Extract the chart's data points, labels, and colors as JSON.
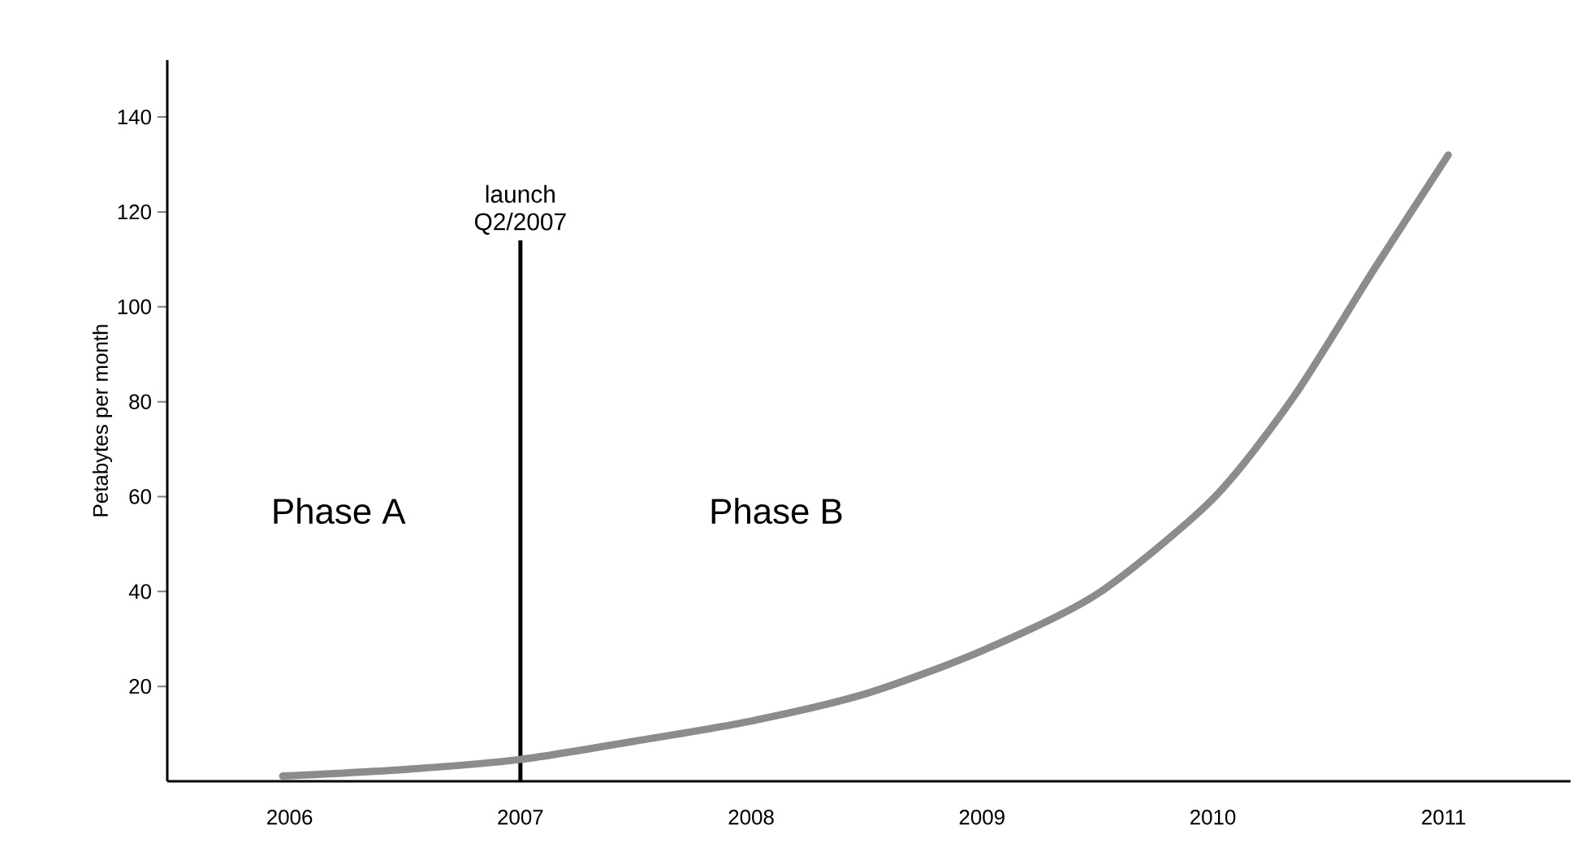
{
  "chart_data": {
    "type": "line",
    "ylabel": "Petabytes per month",
    "xlim": [
      2005.47,
      2011.55
    ],
    "ylim": [
      0,
      152
    ],
    "xticks": [
      2006,
      2007,
      2008,
      2009,
      2010,
      2011
    ],
    "yticks": [
      20,
      40,
      60,
      80,
      100,
      120,
      140
    ],
    "series": [
      {
        "color": "#8c8c8c",
        "x": [
          2005.97,
          2006.5,
          2007,
          2007.5,
          2008,
          2008.5,
          2009,
          2009.5,
          2010,
          2010.35,
          2010.7,
          2011.02
        ],
        "values": [
          1.1,
          2.5,
          4.6,
          8.5,
          12.7,
          18.5,
          27.5,
          39.5,
          59.5,
          81,
          108,
          132
        ]
      }
    ],
    "ref_lines": [
      {
        "axis": "x",
        "value": 2007,
        "label": "launch Q2/2007",
        "color": "#000000"
      }
    ],
    "annotations": [
      "Phase A",
      "Phase B"
    ],
    "marker": "none",
    "line_style": "solid"
  }
}
